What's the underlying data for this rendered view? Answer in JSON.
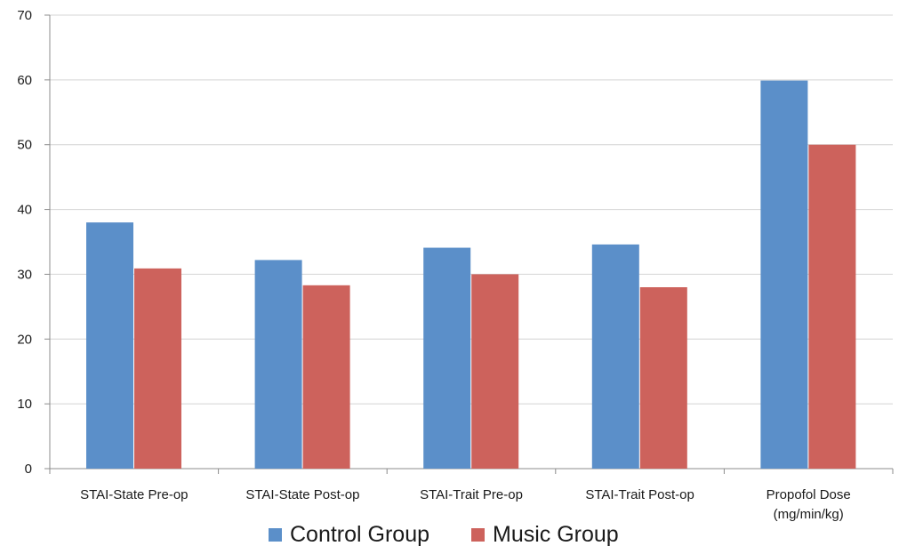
{
  "chart_data": {
    "type": "bar",
    "title": "",
    "xlabel": "",
    "ylabel": "",
    "ylim": [
      0,
      70
    ],
    "yticks": [
      0,
      10,
      20,
      30,
      40,
      50,
      60,
      70
    ],
    "grid": true,
    "legend_position": "bottom",
    "categories": [
      [
        "STAI-State Pre-op"
      ],
      [
        "STAI-State Post-op"
      ],
      [
        "STAI-Trait Pre-op"
      ],
      [
        "STAI-Trait Post-op"
      ],
      [
        "Propofol Dose",
        "(mg/min/kg)"
      ]
    ],
    "series": [
      {
        "name": "Control Group",
        "color": "#5b8fc9",
        "values": [
          38,
          32.2,
          34.1,
          34.6,
          59.9
        ]
      },
      {
        "name": "Music Group",
        "color": "#cd625c",
        "values": [
          30.9,
          28.3,
          30.0,
          28.0,
          50.0
        ]
      }
    ]
  }
}
